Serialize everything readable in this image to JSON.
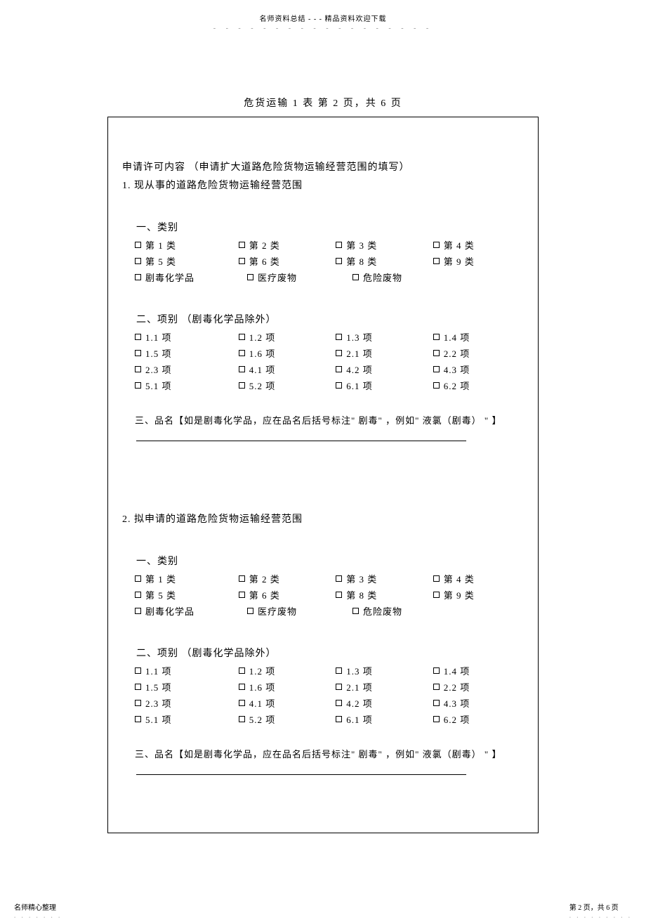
{
  "header": {
    "text": "名师资料总结  -  -  - 精品资料欢迎下载",
    "dots": "- - - - - - - - - - - - - - - - - -"
  },
  "page_title": "危货运输  1 表  第 2 页，共 6 页",
  "main_heading": "申请许可内容  （申请扩大道路危险货物运输经营范围的填写）",
  "section1": {
    "title": "1. 现从事的道路危险货物运输经营范围",
    "sub1": "一、类别",
    "categories": {
      "row1": [
        "第  1 类",
        "第  2 类",
        "第  3 类",
        "第  4 类"
      ],
      "row2": [
        "第  5 类",
        "第  6 类",
        "第  8 类",
        "第  9 类"
      ],
      "row3": [
        "剧毒化学品",
        "医疗废物",
        "危险废物",
        ""
      ]
    },
    "sub2": "二、项别  （剧毒化学品除外）",
    "items": {
      "row1": [
        "1.1  项",
        "1.2  项",
        "1.3  项",
        "1.4  项"
      ],
      "row2": [
        "1.5  项",
        "1.6  项",
        "2.1  项",
        "2.2  项"
      ],
      "row3": [
        "2.3  项",
        "4.1  项",
        "4.2  项",
        "4.3  项"
      ],
      "row4": [
        "5.1  项",
        "5.2  项",
        "6.1  项",
        "6.2  项"
      ]
    },
    "sub3": "三、品名【如是剧毒化学品，应在品名后括号标注\" 剧毒\"          ，例如\"  液氯（剧毒） \" 】"
  },
  "section2": {
    "title": "2. 拟申请的道路危险货物运输经营范围",
    "sub1": "一、类别",
    "categories": {
      "row1": [
        "第  1 类",
        "第  2 类",
        "第  3 类",
        "第  4 类"
      ],
      "row2": [
        "第  5 类",
        "第  6 类",
        "第  8 类",
        "第  9 类"
      ],
      "row3": [
        "剧毒化学品",
        "医疗废物",
        "危险废物",
        ""
      ]
    },
    "sub2": "二、项别  （剧毒化学品除外）",
    "items": {
      "row1": [
        "1.1  项",
        "1.2  项",
        "1.3  项",
        "1.4  项"
      ],
      "row2": [
        "1.5  项",
        "1.6  项",
        "2.1  项",
        "2.2  项"
      ],
      "row3": [
        "2.3  项",
        "4.1  项",
        "4.2  项",
        "4.3  项"
      ],
      "row4": [
        "5.1  项",
        "5.2  项",
        "6.1  项",
        "6.2  项"
      ]
    },
    "sub3": "三、品名【如是剧毒化学品，应在品名后括号标注\" 剧毒\"          ，例如\"  液氯（剧毒） \" 】"
  },
  "footer": {
    "left": "名师精心整理",
    "left_dots": ". . . . . . .",
    "right": "第 2 页，共 6 页",
    "right_dots": ". . . . . . . . ."
  }
}
